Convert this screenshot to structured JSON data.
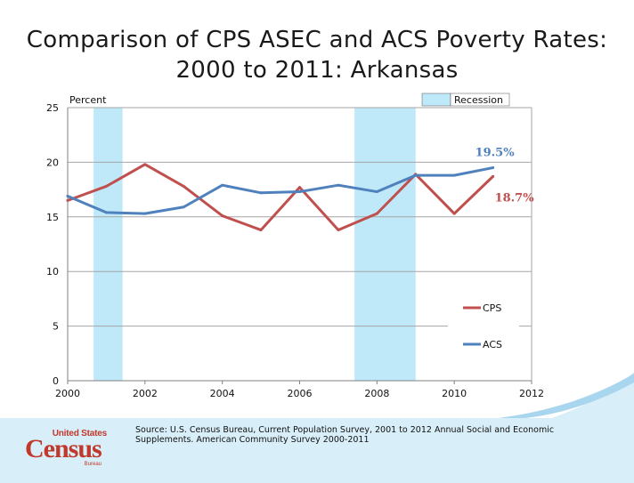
{
  "title": {
    "line1": "Comparison of CPS ASEC and ACS Poverty Rates:",
    "line2": "2000 to 2011:  Arkansas"
  },
  "source_text": "Source: U.S. Census Bureau, Current Population Survey, 2001 to 2012 Annual Social and Economic Supplements.  American Community Survey 2000-2011",
  "logo": {
    "top": "United States",
    "main": "Census",
    "sub": "Bureau"
  },
  "chart_data": {
    "type": "line",
    "ylabel": "Percent",
    "xlim": [
      2000,
      2012
    ],
    "ylim": [
      0,
      25
    ],
    "x_ticks": [
      "2000",
      "2002",
      "2004",
      "2006",
      "2008",
      "2010",
      "2012"
    ],
    "y_ticks": [
      "0",
      "5",
      "10",
      "15",
      "20",
      "25"
    ],
    "grid": true,
    "x": [
      2000,
      2001,
      2002,
      2003,
      2004,
      2005,
      2006,
      2007,
      2008,
      2009,
      2010,
      2011
    ],
    "series": [
      {
        "name": "CPS",
        "color": "#c0504d",
        "values": [
          16.5,
          17.8,
          19.8,
          17.8,
          15.1,
          13.8,
          17.7,
          13.8,
          15.3,
          18.9,
          15.3,
          18.7
        ]
      },
      {
        "name": "ACS",
        "color": "#4f81bd",
        "values": [
          16.9,
          15.4,
          15.3,
          15.9,
          17.9,
          17.2,
          17.3,
          17.9,
          17.3,
          18.8,
          18.8,
          19.5
        ]
      }
    ],
    "recessions": [
      {
        "start": 2000.67,
        "end": 2001.42
      },
      {
        "start": 2007.42,
        "end": 2009.0
      }
    ],
    "recession_label": "Recession",
    "recession_color": "#bfe9f9",
    "annotations": [
      {
        "text": "19.5%",
        "series": "ACS"
      },
      {
        "text": "18.7%",
        "series": "CPS"
      }
    ],
    "legend_position": "lower-right"
  }
}
